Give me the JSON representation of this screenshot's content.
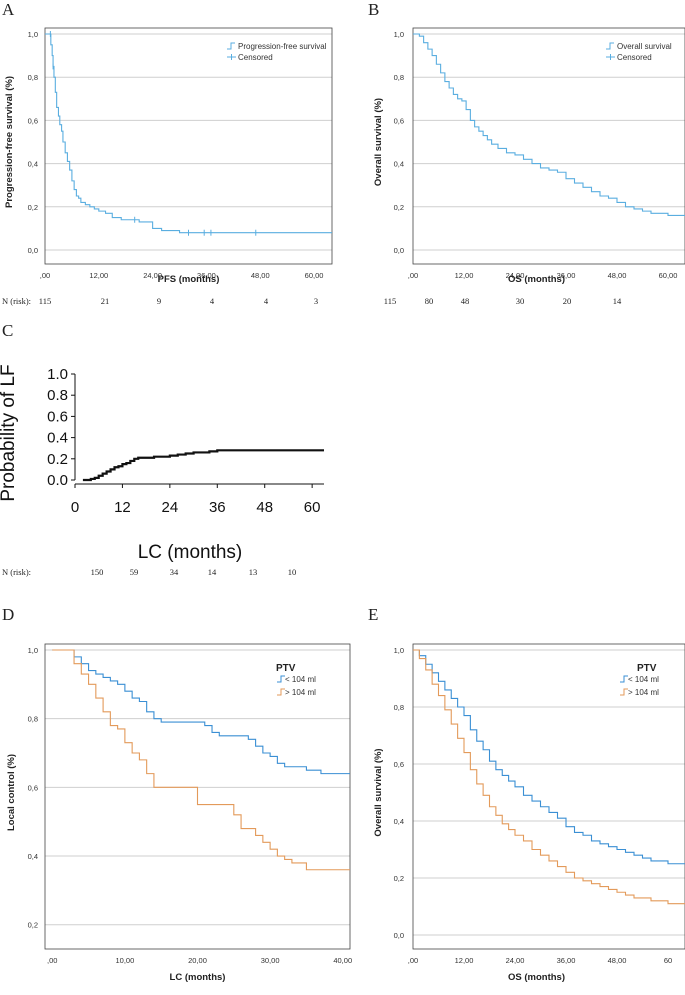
{
  "chart_data": [
    {
      "panel": "A",
      "type": "line",
      "title": "",
      "xlabel": "PFS (months)",
      "ylabel": "Progression-free survival (%)",
      "xlim": [
        0,
        64
      ],
      "ylim": [
        0,
        1.0
      ],
      "x_ticks": [
        ",00",
        "12,00",
        "24,00",
        "36,00",
        "48,00",
        "60,00"
      ],
      "y_ticks": [
        "0,0",
        "0,2",
        "0,4",
        "0,6",
        "0,8",
        "1,0"
      ],
      "legend": [
        "Progression-free survival",
        "Censored"
      ],
      "color": "#5aaee0",
      "series": [
        {
          "name": "Progression-free survival",
          "x": [
            0,
            1,
            1.3,
            1.6,
            1.8,
            2.0,
            2.3,
            2.6,
            3.0,
            3.3,
            3.7,
            4.0,
            4.5,
            5.0,
            5.5,
            6.0,
            6.5,
            7.0,
            7.5,
            8.0,
            9.0,
            10.0,
            11.0,
            12.0,
            13.5,
            15.0,
            17.0,
            19.0,
            21.0,
            24.0,
            26.0,
            30.0,
            36.0,
            48.0,
            64.0
          ],
          "y": [
            1.0,
            1.0,
            0.95,
            0.9,
            0.85,
            0.8,
            0.73,
            0.66,
            0.62,
            0.58,
            0.55,
            0.5,
            0.45,
            0.41,
            0.37,
            0.32,
            0.28,
            0.25,
            0.24,
            0.22,
            0.21,
            0.2,
            0.19,
            0.18,
            0.17,
            0.15,
            0.14,
            0.14,
            0.13,
            0.1,
            0.09,
            0.08,
            0.08,
            0.08,
            0.08
          ]
        }
      ],
      "censored_x": [
        1.2,
        1.8,
        20.0,
        32.0,
        35.5,
        37.0,
        47.0
      ],
      "risk_label": "N (risk):",
      "risk_counts": [
        "115",
        "21",
        "9",
        "4",
        "4",
        "3"
      ]
    },
    {
      "panel": "B",
      "type": "line",
      "title": "",
      "xlabel": "OS (months)",
      "ylabel": "Overall survival (%)",
      "xlim": [
        0,
        64
      ],
      "ylim": [
        0,
        1.0
      ],
      "x_ticks": [
        ",00",
        "12,00",
        "24,00",
        "36,00",
        "48,00",
        "60,00"
      ],
      "y_ticks": [
        "0,0",
        "0,2",
        "0,4",
        "0,6",
        "0,8",
        "1,0"
      ],
      "legend": [
        "Overall survival",
        "Censored"
      ],
      "color": "#5aaee0",
      "series": [
        {
          "name": "Overall survival",
          "x": [
            0,
            1.5,
            2.5,
            3.5,
            4.5,
            5.5,
            6.5,
            7.5,
            8.5,
            9.5,
            10.5,
            11.5,
            12.5,
            13.5,
            14.5,
            15.5,
            16.5,
            17.5,
            18.5,
            20.0,
            22.0,
            24.0,
            26.0,
            28.0,
            30.0,
            32.0,
            34.0,
            36.0,
            38.0,
            40.0,
            42.0,
            44.0,
            46.0,
            48.0,
            50.0,
            52.0,
            54.0,
            56.0,
            60.0,
            64.0
          ],
          "y": [
            1.0,
            0.99,
            0.96,
            0.93,
            0.9,
            0.86,
            0.82,
            0.78,
            0.75,
            0.72,
            0.7,
            0.69,
            0.65,
            0.6,
            0.57,
            0.55,
            0.53,
            0.51,
            0.49,
            0.47,
            0.45,
            0.44,
            0.42,
            0.4,
            0.38,
            0.37,
            0.36,
            0.33,
            0.31,
            0.29,
            0.27,
            0.25,
            0.24,
            0.22,
            0.2,
            0.19,
            0.18,
            0.17,
            0.16,
            0.16
          ]
        }
      ],
      "censored_x": [],
      "risk_label": "",
      "risk_counts": [
        "115",
        "80",
        "48",
        "30",
        "20",
        "14"
      ]
    },
    {
      "panel": "C",
      "type": "line",
      "title": "",
      "xlabel": "LC (months)",
      "ylabel": "Probability of LF",
      "xlim": [
        0,
        63
      ],
      "ylim": [
        0,
        1.0
      ],
      "x_ticks": [
        "0",
        "12",
        "24",
        "36",
        "48",
        "60"
      ],
      "y_ticks": [
        "0.0",
        "0.2",
        "0.4",
        "0.6",
        "0.8",
        "1.0"
      ],
      "legend": [],
      "color": "#111111",
      "series": [
        {
          "name": "Probability of LF",
          "x": [
            2,
            4,
            5,
            6,
            7,
            8,
            9,
            10,
            11,
            12,
            13,
            14,
            15,
            16,
            18,
            20,
            22,
            24,
            26,
            28,
            30,
            32,
            34,
            36,
            40,
            45,
            50,
            55,
            60,
            63
          ],
          "y": [
            0.0,
            0.01,
            0.02,
            0.04,
            0.06,
            0.08,
            0.1,
            0.12,
            0.13,
            0.15,
            0.16,
            0.18,
            0.2,
            0.21,
            0.21,
            0.22,
            0.22,
            0.23,
            0.24,
            0.25,
            0.26,
            0.26,
            0.27,
            0.28,
            0.28,
            0.28,
            0.28,
            0.28,
            0.28,
            0.28
          ]
        }
      ],
      "risk_label": "N (risk):",
      "risk_counts": [
        "150",
        "59",
        "34",
        "14",
        "13",
        "10"
      ]
    },
    {
      "panel": "D",
      "type": "line",
      "title": "",
      "xlabel": "LC (months)",
      "ylabel": "Local control (%)",
      "xlim": [
        -1,
        41
      ],
      "ylim": [
        0.17,
        1.0
      ],
      "x_ticks": [
        ",00",
        "10,00",
        "20,00",
        "30,00",
        "40,00"
      ],
      "y_ticks": [
        "0,2",
        "0,4",
        "0,6",
        "0,8",
        "1,0"
      ],
      "legend_title": "PTV",
      "legend": [
        "< 104 ml",
        "> 104 ml"
      ],
      "colors": [
        "#3a8fd4",
        "#e39a5a"
      ],
      "series": [
        {
          "name": "< 104 ml",
          "x": [
            0,
            2,
            3,
            4,
            5,
            6,
            7,
            8,
            9,
            10,
            11,
            12,
            13,
            14,
            15,
            17,
            19,
            21,
            22,
            23,
            24,
            25,
            26,
            27,
            28,
            29,
            30,
            31,
            32,
            33,
            34,
            35,
            36,
            37,
            38,
            39,
            40,
            41
          ],
          "y": [
            1.0,
            1.0,
            0.98,
            0.96,
            0.94,
            0.93,
            0.92,
            0.91,
            0.9,
            0.88,
            0.86,
            0.85,
            0.82,
            0.8,
            0.79,
            0.79,
            0.79,
            0.78,
            0.76,
            0.75,
            0.75,
            0.75,
            0.75,
            0.74,
            0.72,
            0.7,
            0.69,
            0.67,
            0.66,
            0.66,
            0.66,
            0.65,
            0.65,
            0.64,
            0.64,
            0.64,
            0.64,
            0.64
          ]
        },
        {
          "name": "> 104 ml",
          "x": [
            0,
            2,
            3,
            4,
            5,
            6,
            7,
            8,
            9,
            10,
            11,
            12,
            13,
            14,
            15,
            17,
            19,
            20,
            22,
            24,
            25,
            26,
            27,
            28,
            29,
            30,
            31,
            32,
            33,
            34,
            35,
            36,
            37,
            38,
            39,
            40,
            41
          ],
          "y": [
            1.0,
            1.0,
            0.96,
            0.93,
            0.9,
            0.86,
            0.82,
            0.78,
            0.77,
            0.73,
            0.7,
            0.68,
            0.64,
            0.6,
            0.6,
            0.6,
            0.6,
            0.55,
            0.55,
            0.55,
            0.52,
            0.48,
            0.48,
            0.46,
            0.44,
            0.42,
            0.4,
            0.39,
            0.38,
            0.38,
            0.36,
            0.36,
            0.36,
            0.36,
            0.36,
            0.36,
            0.36
          ]
        }
      ]
    },
    {
      "panel": "E",
      "type": "line",
      "title": "",
      "xlabel": "OS (months)",
      "ylabel": "Overall survival (%)",
      "xlim": [
        0,
        64
      ],
      "ylim": [
        0,
        1.0
      ],
      "x_ticks": [
        ",00",
        "12,00",
        "24,00",
        "36,00",
        "48,00",
        "60"
      ],
      "y_ticks": [
        "0,0",
        "0,2",
        "0,4",
        "0,6",
        "0,8",
        "1,0"
      ],
      "legend_title": "PTV",
      "legend": [
        "< 104 ml",
        "> 104 ml"
      ],
      "colors": [
        "#3a8fd4",
        "#e39a5a"
      ],
      "series": [
        {
          "name": "< 104 ml",
          "x": [
            0,
            1.5,
            3,
            4.5,
            6,
            7.5,
            9,
            10.5,
            12,
            13.5,
            15,
            16.5,
            18,
            19.5,
            21,
            22.5,
            24,
            26,
            28,
            30,
            32,
            34,
            36,
            38,
            40,
            42,
            44,
            46,
            48,
            50,
            52,
            54,
            56,
            58,
            60,
            62,
            64
          ],
          "y": [
            1.0,
            0.98,
            0.95,
            0.92,
            0.89,
            0.86,
            0.83,
            0.8,
            0.77,
            0.72,
            0.68,
            0.65,
            0.61,
            0.58,
            0.56,
            0.54,
            0.52,
            0.49,
            0.47,
            0.45,
            0.43,
            0.41,
            0.38,
            0.36,
            0.35,
            0.33,
            0.32,
            0.31,
            0.3,
            0.29,
            0.28,
            0.27,
            0.26,
            0.26,
            0.25,
            0.25,
            0.25
          ]
        },
        {
          "name": "> 104 ml",
          "x": [
            0,
            1.5,
            3,
            4.5,
            6,
            7.5,
            9,
            10.5,
            12,
            13.5,
            15,
            16.5,
            18,
            19.5,
            21,
            22.5,
            24,
            26,
            28,
            30,
            32,
            34,
            36,
            38,
            40,
            42,
            44,
            46,
            48,
            50,
            52,
            54,
            56,
            58,
            60,
            62,
            64
          ],
          "y": [
            1.0,
            0.97,
            0.93,
            0.88,
            0.84,
            0.79,
            0.74,
            0.69,
            0.64,
            0.58,
            0.53,
            0.49,
            0.45,
            0.42,
            0.39,
            0.37,
            0.35,
            0.33,
            0.3,
            0.28,
            0.26,
            0.24,
            0.22,
            0.2,
            0.19,
            0.18,
            0.17,
            0.16,
            0.15,
            0.14,
            0.13,
            0.13,
            0.12,
            0.12,
            0.11,
            0.11,
            0.11
          ]
        }
      ]
    }
  ]
}
